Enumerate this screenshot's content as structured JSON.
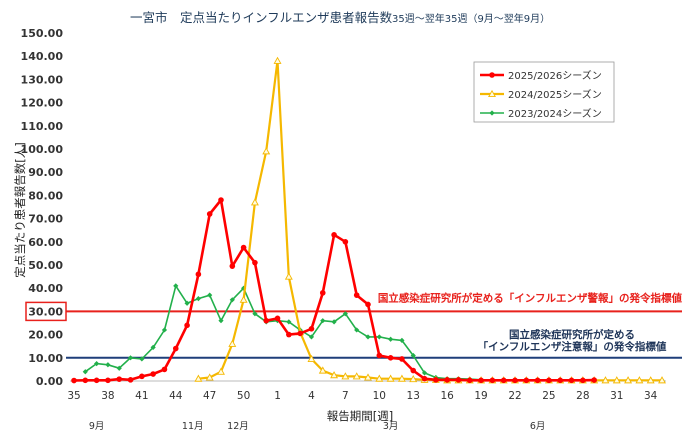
{
  "chart_data": {
    "type": "line",
    "title": "一宮市　定点当たりインフルエンザ患者報告数",
    "subtitle": "35週～翌年35週（9月～翌年9月）",
    "xlabel": "報告期間[週]",
    "ylabel": "定点当たり患者報告数[人]",
    "ylim": [
      0,
      150
    ],
    "y_ticks": [
      "0.00",
      "10.00",
      "20.00",
      "30.00",
      "40.00",
      "50.00",
      "60.00",
      "70.00",
      "80.00",
      "90.00",
      "100.00",
      "110.00",
      "120.00",
      "130.00",
      "140.00",
      "150.00"
    ],
    "x_ticks": [
      {
        "label": "35",
        "index": 0
      },
      {
        "label": "38",
        "index": 3
      },
      {
        "label": "41",
        "index": 6
      },
      {
        "label": "44",
        "index": 9
      },
      {
        "label": "47",
        "index": 12
      },
      {
        "label": "50",
        "index": 15
      },
      {
        "label": "1",
        "index": 18
      },
      {
        "label": "4",
        "index": 21
      },
      {
        "label": "7",
        "index": 24
      },
      {
        "label": "10",
        "index": 27
      },
      {
        "label": "13",
        "index": 30
      },
      {
        "label": "16",
        "index": 33
      },
      {
        "label": "19",
        "index": 36
      },
      {
        "label": "22",
        "index": 39
      },
      {
        "label": "25",
        "index": 42
      },
      {
        "label": "28",
        "index": 45
      },
      {
        "label": "31",
        "index": 48
      },
      {
        "label": "34",
        "index": 51
      }
    ],
    "months": [
      {
        "label": "9月",
        "index": 2
      },
      {
        "label": "11月",
        "index": 10.5
      },
      {
        "label": "12月",
        "index": 14.5
      },
      {
        "label": "3月",
        "index": 28
      },
      {
        "label": "6月",
        "index": 41
      }
    ],
    "n_weeks": 53,
    "grid": false,
    "legend": "top-right",
    "series": [
      {
        "name": "2025/2026シーズン",
        "color": "#ff0000",
        "marker": "circle",
        "values": [
          0.2,
          0.3,
          0.3,
          0.3,
          0.8,
          0.5,
          2.0,
          3.0,
          5.0,
          14.0,
          24.0,
          46.0,
          72.0,
          78.0,
          49.5,
          57.5,
          51.0,
          26.0,
          27.0,
          20.0,
          20.5,
          22.5,
          38.0,
          63.0,
          60.0,
          37.0,
          33.0,
          11.0,
          10.0,
          9.5,
          4.5,
          1.0,
          0.5,
          0.5,
          0.5,
          0.3,
          0.3,
          0.3,
          0.3,
          0.3,
          0.3,
          0.3,
          0.3,
          0.3,
          0.3,
          0.3,
          0.4,
          null,
          null,
          null,
          null,
          null,
          null
        ]
      },
      {
        "name": "2024/2025シーズン",
        "color": "#f5b800",
        "marker": "triangle",
        "values": [
          null,
          null,
          null,
          null,
          null,
          null,
          null,
          null,
          null,
          null,
          null,
          1.0,
          1.5,
          4.0,
          16.0,
          35.0,
          77.0,
          99.0,
          138.0,
          45.0,
          21.0,
          9.5,
          4.5,
          2.5,
          2.0,
          2.0,
          1.5,
          1.0,
          1.0,
          1.0,
          0.8,
          0.5,
          0.5,
          0.3,
          0.3,
          0.3,
          0.3,
          0.3,
          0.3,
          0.3,
          0.3,
          0.3,
          0.3,
          0.3,
          0.3,
          0.3,
          0.3,
          0.3,
          0.3,
          0.3,
          0.3,
          0.3,
          0.3
        ]
      },
      {
        "name": "2023/2024シーズン",
        "color": "#22b04b",
        "marker": "diamond",
        "values": [
          null,
          4.0,
          7.5,
          7.0,
          5.5,
          10.0,
          9.5,
          14.5,
          22.0,
          41.0,
          33.5,
          35.5,
          37.0,
          26.0,
          35.0,
          40.0,
          29.0,
          25.5,
          26.0,
          25.5,
          22.0,
          19.0,
          26.0,
          25.5,
          29.0,
          22.0,
          19.0,
          19.0,
          18.0,
          17.5,
          11.0,
          3.5,
          1.5,
          1.0,
          1.0,
          0.8,
          0.5,
          0.5,
          0.5,
          0.3,
          0.3,
          0.3,
          0.3,
          0.3,
          0.3,
          0.3,
          0.3,
          0.3,
          0.3,
          0.3,
          0.3,
          0.3,
          0.3
        ]
      }
    ],
    "thresholds": [
      {
        "value": 30,
        "color": "#e8211c",
        "label": "国立感染症研究所が定める「インフルエンザ警報」の発令指標値"
      },
      {
        "value": 10,
        "color": "#1f3f7a",
        "label_lines": [
          "国立感染症研究所が定める",
          "「インフルエンザ注意報」の発令指標値"
        ]
      }
    ],
    "highlighted_tick": "30.00"
  }
}
